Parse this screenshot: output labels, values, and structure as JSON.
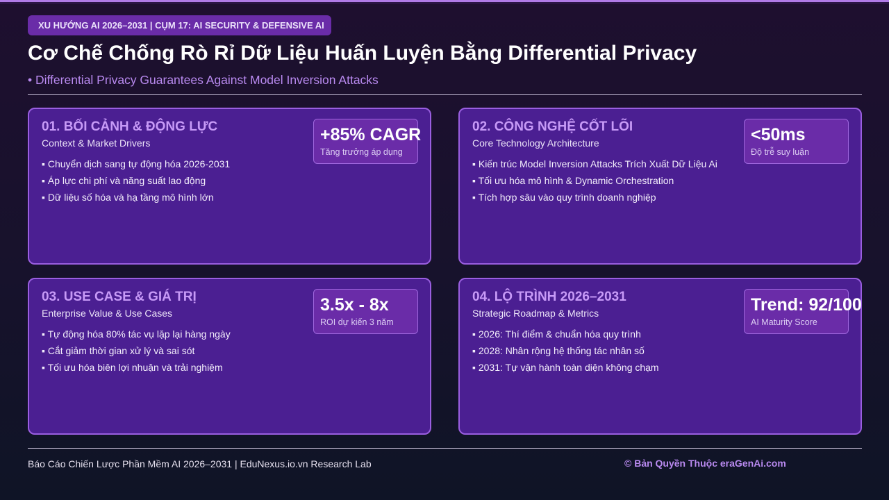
{
  "header": {
    "tag": "XU HƯỚNG AI 2026–2031 | CỤM 17: AI SECURITY & DEFENSIVE AI",
    "title": "Cơ Chế Chống Rò Rỉ Dữ Liệu Huấn Luyện Bằng Differential Privacy",
    "subtitle": "• Differential Privacy Guarantees Against Model Inversion Attacks"
  },
  "cards": [
    {
      "heading": "01. BỐI CẢNH & ĐỘNG LỰC",
      "subheading": "Context & Market Drivers",
      "items": [
        "▪ Chuyển dịch sang tự động hóa 2026-2031",
        "▪ Áp lực chi phí và năng suất lao động",
        "▪ Dữ liệu số hóa và hạ tầng mô hình lớn"
      ],
      "stat": {
        "value": "+85% CAGR",
        "label": "Tăng trưởng áp dụng"
      }
    },
    {
      "heading": "02. CÔNG NGHỆ CỐT LÕI",
      "subheading": "Core Technology Architecture",
      "items": [
        "▪ Kiến trúc Model Inversion Attacks Trích Xuất Dữ Liệu Ai",
        "▪ Tối ưu hóa mô hình & Dynamic Orchestration",
        "▪ Tích hợp sâu vào quy trình doanh nghiệp"
      ],
      "stat": {
        "value": "<50ms",
        "label": "Độ trễ suy luận"
      }
    },
    {
      "heading": "03. USE CASE & GIÁ TRỊ",
      "subheading": "Enterprise Value & Use Cases",
      "items": [
        "▪ Tự động hóa 80% tác vụ lặp lại hàng ngày",
        "▪ Cắt giảm thời gian xử lý và sai sót",
        "▪ Tối ưu hóa biên lợi nhuận và trải nghiệm"
      ],
      "stat": {
        "value": "3.5x - 8x",
        "label": "ROI dự kiến 3 năm"
      }
    },
    {
      "heading": "04. LỘ TRÌNH 2026–2031",
      "subheading": "Strategic Roadmap & Metrics",
      "items": [
        "▪ 2026: Thí điểm & chuẩn hóa quy trình",
        "▪ 2028: Nhân rộng hệ thống tác nhân số",
        "▪ 2031: Tự vận hành toàn diện không chạm"
      ],
      "stat": {
        "value": "Trend: 92/100",
        "label": "AI Maturity Score"
      }
    }
  ],
  "footer": {
    "left": "Báo Cáo Chiến Lược Phần Mềm AI 2026–2031 | EduNexus.io.vn Research Lab",
    "right": "© Bản Quyền Thuộc eraGenAi.com"
  },
  "colors": {
    "accent": "#b07ae6",
    "card_bg": "#4b1f92",
    "card_border": "#9a5ee0",
    "heading": "#c79af7"
  }
}
